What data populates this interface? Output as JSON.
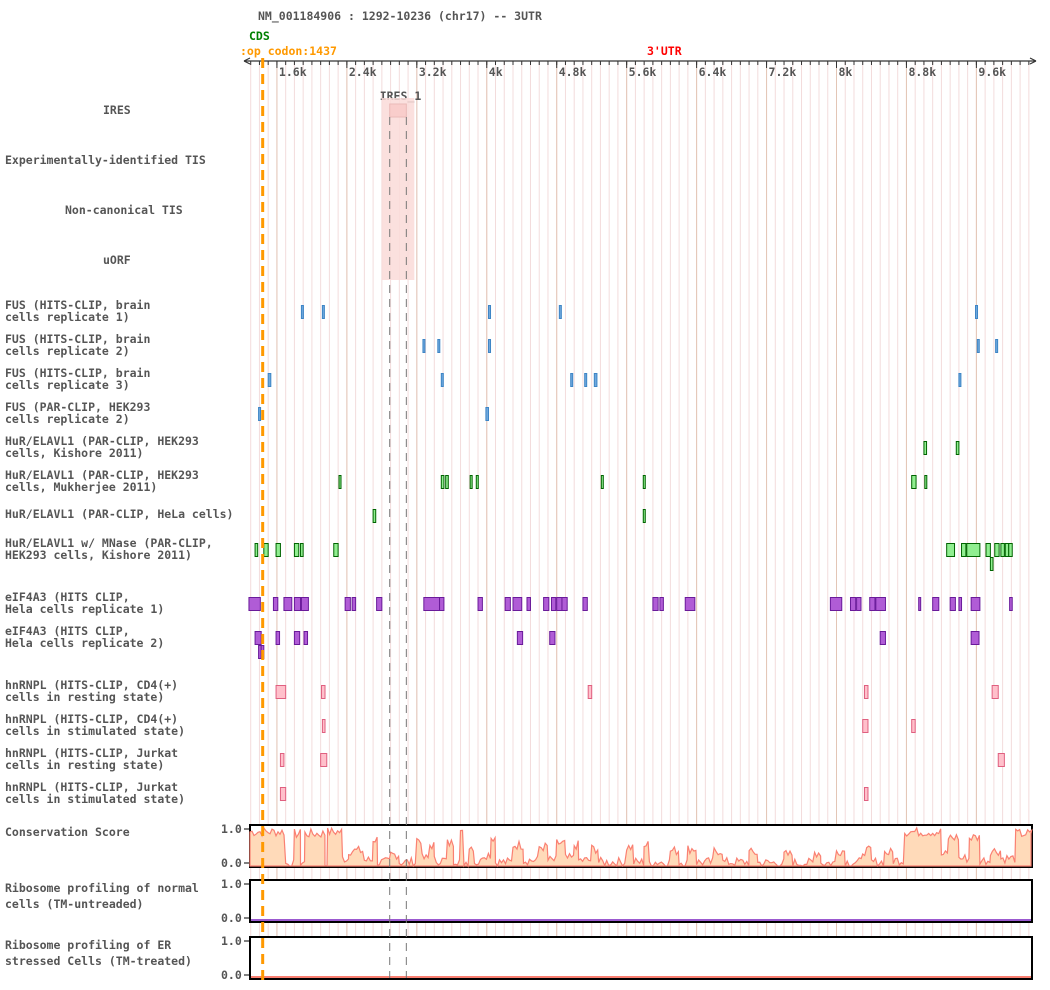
{
  "header": {
    "title": "NM_001184906 : 1292-10236 (chr17) -- 3UTR",
    "cds_label": "CDS",
    "stop_codon_label": ":op codon:1437",
    "utr_label": "3'UTR"
  },
  "axis": {
    "min": 1292,
    "max": 10236,
    "ticks": [
      {
        "value": 1600,
        "label": "1.6k"
      },
      {
        "value": 2400,
        "label": "2.4k"
      },
      {
        "value": 3200,
        "label": "3.2k"
      },
      {
        "value": 4000,
        "label": "4k"
      },
      {
        "value": 4800,
        "label": "4.8k"
      },
      {
        "value": 5600,
        "label": "5.6k"
      },
      {
        "value": 6400,
        "label": "6.4k"
      },
      {
        "value": 7200,
        "label": "7.2k"
      },
      {
        "value": 8000,
        "label": "8k"
      },
      {
        "value": 8800,
        "label": "8.8k"
      },
      {
        "value": 9600,
        "label": "9.6k"
      }
    ],
    "minor_step": 100
  },
  "stop_codon": 1437,
  "ires": {
    "label": "IRES_1",
    "start": 2890,
    "end": 3080
  },
  "colors": {
    "cds": "#008000",
    "stop": "#ff9900",
    "utr": "#ff0000",
    "fus": "#6fa8dc",
    "fus_stroke": "#3d85c6",
    "hur": "#90ee90",
    "hur_stroke": "#006400",
    "eif": "#b05cd6",
    "eif_stroke": "#6a1b9a",
    "hnrnp": "#ffc0cb",
    "hnrnp_stroke": "#e06080",
    "ires": "#f08080",
    "conservation": "#fa8072",
    "conservation_fill": "#ffdab9",
    "ribo_line": "#9b59d0"
  },
  "tracks": [
    {
      "id": "ires",
      "label": [
        "IRES"
      ],
      "type": "ires"
    },
    {
      "id": "tis_exp",
      "label": [
        "Experimentally-identified TIS"
      ],
      "type": "empty"
    },
    {
      "id": "tis_nc",
      "label": [
        "Non-canonical TIS"
      ],
      "type": "empty"
    },
    {
      "id": "uorf",
      "label": [
        "uORF"
      ],
      "type": "empty"
    },
    {
      "id": "fus1",
      "label": [
        "FUS (HITS-CLIP, brain",
        "cells replicate 1)"
      ],
      "type": "features",
      "color": "fus",
      "features": [
        [
          1880,
          1900
        ],
        [
          2120,
          2140
        ],
        [
          4020,
          4035
        ],
        [
          4830,
          4850
        ],
        [
          9590,
          9610
        ]
      ]
    },
    {
      "id": "fus2",
      "label": [
        "FUS (HITS-CLIP, brain",
        "cells replicate 2)"
      ],
      "type": "features",
      "color": "fus",
      "features": [
        [
          3270,
          3290
        ],
        [
          3440,
          3460
        ],
        [
          4020,
          4035
        ],
        [
          9610,
          9630
        ],
        [
          9820,
          9840
        ]
      ]
    },
    {
      "id": "fus3",
      "label": [
        "FUS (HITS-CLIP, brain",
        "cells replicate 3)"
      ],
      "type": "features",
      "color": "fus",
      "features": [
        [
          1500,
          1530
        ],
        [
          3480,
          3500
        ],
        [
          4960,
          4980
        ],
        [
          5120,
          5140
        ],
        [
          5230,
          5260
        ],
        [
          9400,
          9420
        ]
      ]
    },
    {
      "id": "fus4",
      "label": [
        "FUS (PAR-CLIP, HEK293",
        "cells replicate 2)"
      ],
      "type": "features",
      "color": "fus",
      "features": [
        [
          1390,
          1410
        ],
        [
          3990,
          4020
        ]
      ]
    },
    {
      "id": "hur1",
      "label": [
        "HuR/ELAVL1 (PAR-CLIP, HEK293",
        "cells, Kishore 2011)"
      ],
      "type": "features",
      "color": "hur",
      "features": [
        [
          9000,
          9030
        ],
        [
          9370,
          9400
        ]
      ]
    },
    {
      "id": "hur2",
      "label": [
        "HuR/ELAVL1 (PAR-CLIP, HEK293",
        "cells, Mukherjee 2011)"
      ],
      "type": "features",
      "color": "hur",
      "features": [
        [
          2310,
          2330
        ],
        [
          3480,
          3510
        ],
        [
          3530,
          3560
        ],
        [
          3810,
          3830
        ],
        [
          3880,
          3900
        ],
        [
          5310,
          5330
        ],
        [
          5790,
          5810
        ],
        [
          8860,
          8910
        ],
        [
          9010,
          9030
        ]
      ]
    },
    {
      "id": "hur3",
      "label": [
        "HuR/ELAVL1 (PAR-CLIP, HeLa cells)"
      ],
      "type": "features",
      "color": "hur",
      "features": [
        [
          2700,
          2730
        ],
        [
          5790,
          5810
        ]
      ]
    },
    {
      "id": "hur4",
      "label": [
        "HuR/ELAVL1 w/ MNase (PAR-CLIP,",
        "HEK293 cells, Kishore 2011)"
      ],
      "type": "features",
      "color": "hur",
      "features": [
        [
          1350,
          1380
        ],
        [
          1450,
          1500
        ],
        [
          1590,
          1640
        ],
        [
          1800,
          1850
        ],
        [
          1870,
          1900
        ],
        [
          2250,
          2300
        ],
        [
          9260,
          9350
        ],
        [
          9430,
          9480
        ],
        [
          9490,
          9640
        ],
        [
          9710,
          9760
        ],
        [
          9810,
          9860
        ],
        [
          9880,
          9920
        ],
        [
          9930,
          9970
        ],
        [
          9970,
          10010
        ],
        [
          9760,
          9790,
          1
        ]
      ]
    },
    {
      "id": "eif1",
      "label": [
        "eIF4A3 (HITS CLIP,",
        "Hela cells replicate 1)"
      ],
      "type": "features",
      "color": "eif",
      "features": [
        [
          1280,
          1410
        ],
        [
          1560,
          1610
        ],
        [
          1680,
          1770
        ],
        [
          1800,
          1870
        ],
        [
          1880,
          1960
        ],
        [
          2380,
          2440
        ],
        [
          2460,
          2500
        ],
        [
          2740,
          2800
        ],
        [
          3280,
          3460
        ],
        [
          3460,
          3510
        ],
        [
          3900,
          3950
        ],
        [
          4210,
          4270
        ],
        [
          4300,
          4400
        ],
        [
          4460,
          4500
        ],
        [
          4650,
          4710
        ],
        [
          4740,
          4790
        ],
        [
          4800,
          4860
        ],
        [
          4860,
          4920
        ],
        [
          5100,
          5150
        ],
        [
          5900,
          5960
        ],
        [
          5980,
          6020
        ],
        [
          6270,
          6380
        ],
        [
          7930,
          8060
        ],
        [
          8160,
          8220
        ],
        [
          8230,
          8280
        ],
        [
          8380,
          8440
        ],
        [
          8450,
          8560
        ],
        [
          8940,
          8960
        ],
        [
          9100,
          9170
        ],
        [
          9300,
          9360
        ],
        [
          9400,
          9430
        ],
        [
          9540,
          9640
        ],
        [
          9980,
          10010
        ]
      ]
    },
    {
      "id": "eif2",
      "label": [
        "eIF4A3 (HITS CLIP,",
        "Hela cells replicate 2)"
      ],
      "type": "features",
      "color": "eif",
      "features": [
        [
          1350,
          1420
        ],
        [
          1590,
          1630
        ],
        [
          1800,
          1860
        ],
        [
          1910,
          1950
        ],
        [
          4350,
          4410
        ],
        [
          4720,
          4780
        ],
        [
          8500,
          8560
        ],
        [
          9540,
          9630
        ],
        [
          1390,
          1420,
          1
        ],
        [
          1420,
          1450,
          1
        ]
      ]
    },
    {
      "id": "hn1",
      "label": [
        "hnRNPL (HITS-CLIP, CD4(+)",
        "cells in resting state)"
      ],
      "type": "features",
      "color": "hnrnp",
      "features": [
        [
          1590,
          1700
        ],
        [
          2110,
          2150
        ],
        [
          5160,
          5200
        ],
        [
          8320,
          8360
        ],
        [
          9780,
          9850
        ]
      ]
    },
    {
      "id": "hn2",
      "label": [
        "hnRNPL (HITS-CLIP, CD4(+)",
        "cells in stimulated state)"
      ],
      "type": "features",
      "color": "hnrnp",
      "features": [
        [
          2120,
          2150
        ],
        [
          8300,
          8360
        ],
        [
          8860,
          8900
        ]
      ]
    },
    {
      "id": "hn3",
      "label": [
        "hnRNPL (HITS-CLIP, Jurkat",
        "cells in resting state)"
      ],
      "type": "features",
      "color": "hnrnp",
      "features": [
        [
          1640,
          1680
        ],
        [
          2100,
          2170
        ],
        [
          9850,
          9920
        ]
      ]
    },
    {
      "id": "hn4",
      "label": [
        "hnRNPL (HITS-CLIP, Jurkat",
        "cells in stimulated state)"
      ],
      "type": "features",
      "color": "hnrnp",
      "features": [
        [
          1640,
          1700
        ],
        [
          8320,
          8360
        ]
      ]
    },
    {
      "id": "cons",
      "label": [
        "Conservation Score"
      ],
      "type": "conservation",
      "ymax_label": "1.0",
      "ymin_label": "0.0",
      "segments": [
        [
          1292,
          1700,
          0.9
        ],
        [
          1700,
          1800,
          0.05
        ],
        [
          1800,
          1870,
          0.85
        ],
        [
          1870,
          1920,
          0.1
        ],
        [
          1920,
          2150,
          0.85
        ],
        [
          2150,
          2180,
          0.05
        ],
        [
          2180,
          2350,
          0.9
        ],
        [
          2350,
          2420,
          0.2
        ],
        [
          2420,
          2600,
          0.4
        ],
        [
          2600,
          2700,
          0.15
        ],
        [
          2700,
          2750,
          0.7
        ],
        [
          2750,
          2900,
          0.1
        ],
        [
          2900,
          3000,
          0.3
        ],
        [
          3000,
          3200,
          0.1
        ],
        [
          3200,
          3260,
          0.7
        ],
        [
          3260,
          3350,
          0.2
        ],
        [
          3350,
          3400,
          0.55
        ],
        [
          3400,
          3550,
          0.15
        ],
        [
          3550,
          3620,
          0.6
        ],
        [
          3620,
          3700,
          0.15
        ],
        [
          3700,
          3740,
          0.85
        ],
        [
          3740,
          3800,
          0.1
        ],
        [
          3800,
          3860,
          0.5
        ],
        [
          3860,
          3950,
          0.1
        ],
        [
          3950,
          4050,
          0.3
        ],
        [
          4050,
          4100,
          0.75
        ],
        [
          4100,
          4300,
          0.1
        ],
        [
          4300,
          4420,
          0.55
        ],
        [
          4420,
          4600,
          0.15
        ],
        [
          4600,
          4700,
          0.5
        ],
        [
          4700,
          4800,
          0.15
        ],
        [
          4800,
          4900,
          0.6
        ],
        [
          4900,
          5000,
          0.2
        ],
        [
          5000,
          5050,
          0.55
        ],
        [
          5050,
          5200,
          0.15
        ],
        [
          5200,
          5280,
          0.45
        ],
        [
          5280,
          5600,
          0.1
        ],
        [
          5600,
          5680,
          0.5
        ],
        [
          5680,
          5800,
          0.1
        ],
        [
          5800,
          5860,
          0.55
        ],
        [
          5860,
          6100,
          0.1
        ],
        [
          6100,
          6200,
          0.4
        ],
        [
          6200,
          6300,
          0.1
        ],
        [
          6300,
          6400,
          0.45
        ],
        [
          6400,
          6600,
          0.1
        ],
        [
          6600,
          6700,
          0.4
        ],
        [
          6700,
          7000,
          0.1
        ],
        [
          7000,
          7100,
          0.35
        ],
        [
          7100,
          7400,
          0.08
        ],
        [
          7400,
          7500,
          0.3
        ],
        [
          7500,
          7750,
          0.08
        ],
        [
          7750,
          7820,
          0.35
        ],
        [
          7820,
          8000,
          0.08
        ],
        [
          8000,
          8100,
          0.4
        ],
        [
          8100,
          8300,
          0.1
        ],
        [
          8300,
          8400,
          0.4
        ],
        [
          8400,
          8550,
          0.1
        ],
        [
          8550,
          8650,
          0.35
        ],
        [
          8650,
          8780,
          0.15
        ],
        [
          8780,
          9200,
          0.9
        ],
        [
          9200,
          9280,
          0.3
        ],
        [
          9280,
          9400,
          0.75
        ],
        [
          9400,
          9520,
          0.2
        ],
        [
          9520,
          9640,
          0.75
        ],
        [
          9640,
          9760,
          0.15
        ],
        [
          9760,
          9880,
          0.4
        ],
        [
          9880,
          10050,
          0.2
        ],
        [
          10050,
          10236,
          0.85
        ]
      ]
    },
    {
      "id": "ribo1",
      "label": [
        "Ribosome profiling of normal",
        "cells (TM-untreaded)"
      ],
      "type": "ribo",
      "ymax_label": "1.0",
      "ymin_label": "0.0",
      "line_color": "ribo_line"
    },
    {
      "id": "ribo2",
      "label": [
        "Ribosome profiling of ER",
        "stressed Cells (TM-treated)"
      ],
      "type": "ribo",
      "ymax_label": "1.0",
      "ymin_label": "0.0",
      "line_color": "conservation"
    }
  ]
}
